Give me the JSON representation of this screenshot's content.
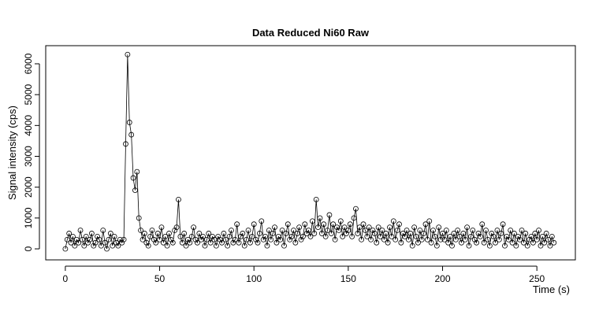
{
  "chart_data": {
    "type": "line",
    "title": "Data Reduced Ni60 Raw",
    "xlabel": "Time (s)",
    "ylabel": "Signal intensity (cps)",
    "x": [
      0,
      1,
      2,
      3,
      4,
      5,
      6,
      7,
      8,
      9,
      10,
      11,
      12,
      13,
      14,
      15,
      16,
      17,
      18,
      19,
      20,
      21,
      22,
      23,
      24,
      25,
      26,
      27,
      28,
      29,
      30,
      31,
      32,
      33,
      34,
      35,
      36,
      37,
      38,
      39,
      40,
      41,
      42,
      43,
      44,
      45,
      46,
      47,
      48,
      49,
      50,
      51,
      52,
      53,
      54,
      55,
      56,
      57,
      58,
      59,
      60,
      61,
      62,
      63,
      64,
      65,
      66,
      67,
      68,
      69,
      70,
      71,
      72,
      73,
      74,
      75,
      76,
      77,
      78,
      79,
      80,
      81,
      82,
      83,
      84,
      85,
      86,
      87,
      88,
      89,
      90,
      91,
      92,
      93,
      94,
      95,
      96,
      97,
      98,
      99,
      100,
      101,
      102,
      103,
      104,
      105,
      106,
      107,
      108,
      109,
      110,
      111,
      112,
      113,
      114,
      115,
      116,
      117,
      118,
      119,
      120,
      121,
      122,
      123,
      124,
      125,
      126,
      127,
      128,
      129,
      130,
      131,
      132,
      133,
      134,
      135,
      136,
      137,
      138,
      139,
      140,
      141,
      142,
      143,
      144,
      145,
      146,
      147,
      148,
      149,
      150,
      151,
      152,
      153,
      154,
      155,
      156,
      157,
      158,
      159,
      160,
      161,
      162,
      163,
      164,
      165,
      166,
      167,
      168,
      169,
      170,
      171,
      172,
      173,
      174,
      175,
      176,
      177,
      178,
      179,
      180,
      181,
      182,
      183,
      184,
      185,
      186,
      187,
      188,
      189,
      190,
      191,
      192,
      193,
      194,
      195,
      196,
      197,
      198,
      199,
      200,
      201,
      202,
      203,
      204,
      205,
      206,
      207,
      208,
      209,
      210,
      211,
      212,
      213,
      214,
      215,
      216,
      217,
      218,
      219,
      220,
      221,
      222,
      223,
      224,
      225,
      226,
      227,
      228,
      229,
      230,
      231,
      232,
      233,
      234,
      235,
      236,
      237,
      238,
      239,
      240,
      241,
      242,
      243,
      244,
      245,
      246,
      247,
      248,
      249,
      250,
      251,
      252,
      253,
      254,
      255,
      256,
      257,
      258,
      259
    ],
    "values": [
      0,
      300,
      500,
      200,
      400,
      100,
      300,
      200,
      600,
      300,
      100,
      400,
      200,
      300,
      500,
      100,
      200,
      400,
      300,
      100,
      600,
      200,
      0,
      300,
      500,
      100,
      400,
      200,
      100,
      300,
      200,
      300,
      3400,
      6300,
      4100,
      3700,
      2300,
      1900,
      2500,
      1000,
      600,
      300,
      500,
      200,
      100,
      400,
      600,
      300,
      200,
      500,
      300,
      700,
      200,
      400,
      100,
      500,
      300,
      200,
      600,
      700,
      1600,
      400,
      200,
      500,
      100,
      300,
      200,
      400,
      700,
      300,
      200,
      500,
      300,
      400,
      100,
      300,
      500,
      200,
      400,
      300,
      100,
      400,
      300,
      200,
      500,
      300,
      100,
      400,
      600,
      200,
      300,
      800,
      200,
      400,
      500,
      100,
      300,
      600,
      200,
      400,
      800,
      300,
      200,
      500,
      900,
      300,
      400,
      100,
      600,
      300,
      500,
      700,
      200,
      400,
      300,
      600,
      100,
      500,
      800,
      300,
      400,
      600,
      200,
      500,
      700,
      300,
      400,
      800,
      500,
      600,
      400,
      900,
      500,
      1600,
      700,
      1000,
      500,
      800,
      400,
      600,
      1100,
      500,
      800,
      300,
      700,
      600,
      900,
      400,
      700,
      500,
      600,
      800,
      400,
      1000,
      1300,
      500,
      700,
      300,
      800,
      600,
      400,
      700,
      300,
      600,
      500,
      200,
      700,
      400,
      600,
      300,
      500,
      200,
      700,
      400,
      900,
      300,
      600,
      800,
      200,
      500,
      400,
      600,
      300,
      500,
      100,
      700,
      400,
      200,
      600,
      300,
      500,
      800,
      300,
      900,
      200,
      600,
      400,
      100,
      700,
      300,
      500,
      300,
      600,
      200,
      400,
      100,
      500,
      300,
      600,
      400,
      200,
      500,
      300,
      700,
      100,
      400,
      600,
      300,
      200,
      500,
      400,
      800,
      200,
      600,
      300,
      100,
      500,
      400,
      200,
      600,
      300,
      500,
      800,
      100,
      400,
      300,
      600,
      200,
      500,
      100,
      400,
      300,
      600,
      200,
      500,
      100,
      300,
      400,
      200,
      500,
      300,
      600,
      100,
      400,
      200,
      500,
      300,
      100,
      400,
      200
    ],
    "color": "#000000",
    "xlim": [
      -10.4,
      270.4
    ],
    "xticks": [
      0,
      50,
      100,
      150,
      200,
      250
    ],
    "ylim": [
      -357,
      6587
    ],
    "yticks": [
      0,
      1000,
      2000,
      3000,
      4000,
      5000,
      6000
    ]
  }
}
